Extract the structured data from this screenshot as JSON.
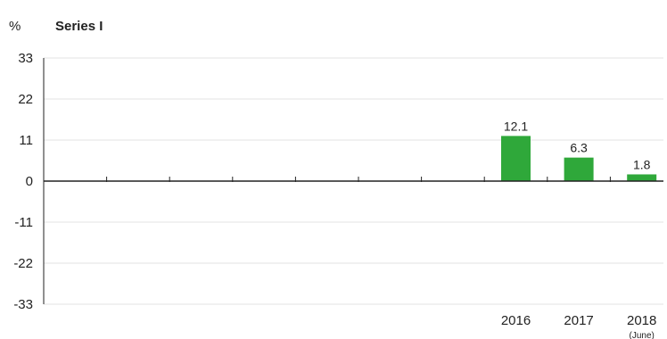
{
  "chart_data": {
    "type": "bar",
    "title": "Series I",
    "unit": "%",
    "categories": [
      "",
      "",
      "",
      "",
      "",
      "",
      "",
      "2016",
      "2017",
      "2018"
    ],
    "category_sublabels": [
      "",
      "",
      "",
      "",
      "",
      "",
      "",
      "",
      "",
      "(June)"
    ],
    "values": [
      null,
      null,
      null,
      null,
      null,
      null,
      null,
      12.1,
      6.3,
      1.8
    ],
    "data_labels": [
      "",
      "",
      "",
      "",
      "",
      "",
      "",
      "12.1",
      "6.3",
      "1.8"
    ],
    "yticks": [
      "33",
      "22",
      "11",
      "0",
      "-11",
      "-22",
      "-33"
    ],
    "ylim": [
      -33,
      33
    ],
    "grid": true,
    "bar_color": "#2fa83a",
    "grid_color": "#e3e3e3",
    "axis_color": "#222222"
  }
}
